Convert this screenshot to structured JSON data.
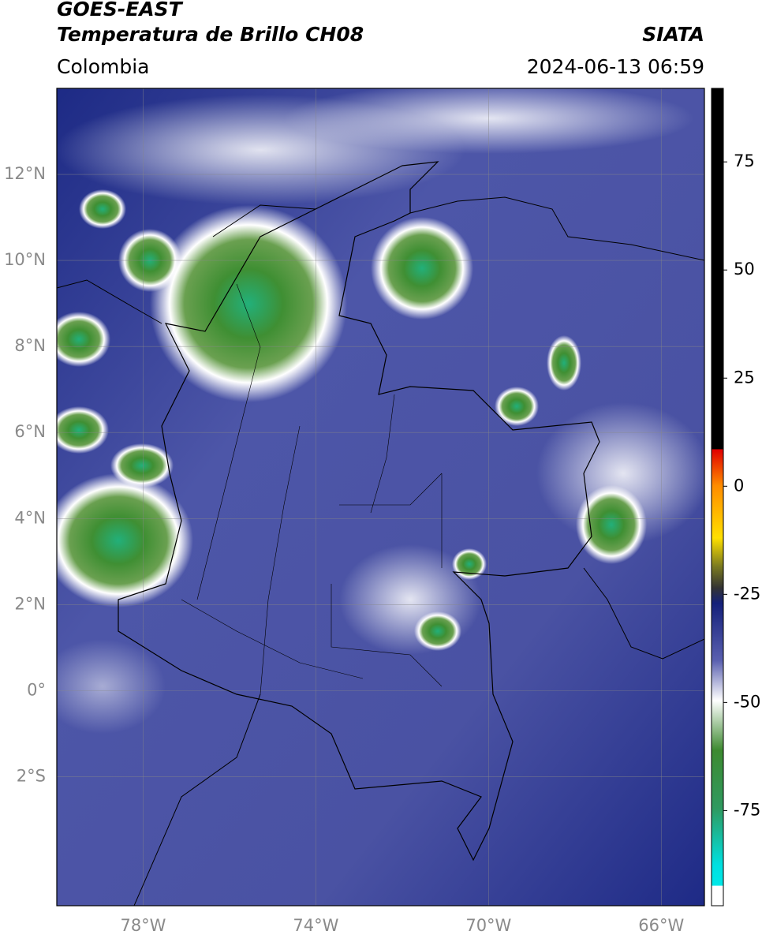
{
  "header": {
    "title": "GOES-EAST",
    "subtitle": "Temperatura de Brillo CH08",
    "region": "Colombia",
    "source": "SIATA",
    "datetime": "2024-06-13 06:59"
  },
  "map": {
    "xlim": [
      -80,
      -65
    ],
    "ylim": [
      -5,
      14
    ],
    "xticks": [
      {
        "value": -78,
        "label": "78°W"
      },
      {
        "value": -74,
        "label": "74°W"
      },
      {
        "value": -70,
        "label": "70°W"
      },
      {
        "value": -66,
        "label": "66°W"
      }
    ],
    "yticks": [
      {
        "value": 12,
        "label": "12°N"
      },
      {
        "value": 10,
        "label": "10°N"
      },
      {
        "value": 8,
        "label": "8°N"
      },
      {
        "value": 6,
        "label": "6°N"
      },
      {
        "value": 4,
        "label": "4°N"
      },
      {
        "value": 2,
        "label": "2°N"
      },
      {
        "value": 0,
        "label": "0°"
      },
      {
        "value": -2,
        "label": "2°S"
      }
    ],
    "grid": true
  },
  "colorbar": {
    "lim": [
      -97,
      92
    ],
    "ticks": [
      75,
      50,
      25,
      0,
      -25,
      -50,
      -75
    ]
  }
}
